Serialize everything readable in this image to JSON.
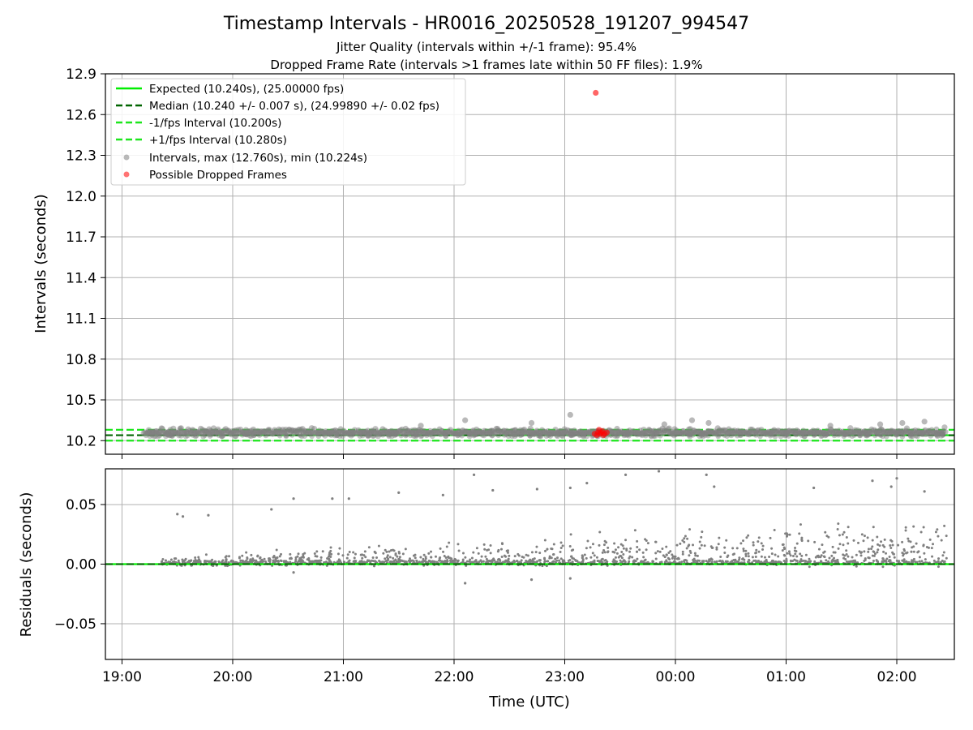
{
  "title": "Timestamp Intervals - HR0016_20250528_191207_994547",
  "subtitle_lines": [
    "Jitter Quality (intervals within +/-1 frame): 95.4%",
    "Dropped Frame Rate (intervals >1 frames late within 50 FF files): 1.9%"
  ],
  "colors": {
    "expected": "#00ee00",
    "median": "#006400",
    "fps_band": "#1de61d",
    "intervals": "#808080",
    "dropped": "#ff0000",
    "grid": "#b0b0b0"
  },
  "chart_data": [
    {
      "type": "scatter",
      "ylabel": "Intervals (seconds)",
      "ylim": [
        10.1,
        12.9
      ],
      "y_ticks": [
        "10.2",
        "10.5",
        "10.8",
        "11.1",
        "11.4",
        "11.7",
        "12.0",
        "12.3",
        "12.6",
        "12.9"
      ],
      "grid": true,
      "legend_position": "top-left",
      "reference_lines": [
        {
          "name": "Expected (10.240s), (25.00000 fps)",
          "value": 10.24,
          "style": "solid",
          "color": "#00ee00"
        },
        {
          "name": "Median (10.240 +/- 0.007 s), (24.99890 +/- 0.02 fps)",
          "value": 10.24,
          "style": "dashed",
          "color": "#006400"
        },
        {
          "name": "-1/fps Interval (10.200s)",
          "value": 10.2,
          "style": "dashed",
          "color": "#1de61d"
        },
        {
          "name": "+1/fps Interval (10.280s)",
          "value": 10.28,
          "style": "dashed",
          "color": "#1de61d"
        }
      ],
      "series": [
        {
          "name": "Intervals, max (12.760s), min (10.224s)",
          "max": 12.76,
          "min": 10.224,
          "typical": 10.24,
          "color": "#808080"
        },
        {
          "name": "Possible Dropped Frames",
          "color": "#ff0000",
          "points": [
            [
              23.28,
              12.76
            ],
            [
              23.27,
              10.25
            ],
            [
              23.3,
              10.26
            ],
            [
              23.32,
              10.25
            ],
            [
              23.34,
              10.27
            ],
            [
              23.36,
              10.25
            ],
            [
              23.38,
              10.26
            ],
            [
              23.31,
              10.28
            ],
            [
              23.29,
              10.24
            ],
            [
              23.35,
              10.24
            ],
            [
              23.33,
              10.26
            ]
          ]
        }
      ],
      "notable_points": [
        [
          22.1,
          10.35
        ],
        [
          23.05,
          10.39
        ],
        [
          21.7,
          10.31
        ],
        [
          22.7,
          10.33
        ],
        [
          0.15,
          10.35
        ],
        [
          1.4,
          10.31
        ],
        [
          2.05,
          10.33
        ],
        [
          2.25,
          10.34
        ],
        [
          1.85,
          10.32
        ],
        [
          23.9,
          10.32
        ],
        [
          0.3,
          10.33
        ]
      ]
    },
    {
      "type": "scatter",
      "xlabel": "Time (UTC)",
      "ylabel": "Residuals (seconds)",
      "ylim": [
        -0.08,
        0.08
      ],
      "y_ticks": [
        "−0.05",
        "0.00",
        "0.05"
      ],
      "x_range_hours": [
        18.85,
        2.52
      ],
      "x_ticks": [
        "19:00",
        "20:00",
        "21:00",
        "22:00",
        "23:00",
        "00:00",
        "01:00",
        "02:00"
      ],
      "grid": true,
      "series_color": "#808080",
      "notable_points": [
        [
          19.5,
          0.042
        ],
        [
          19.55,
          0.04
        ],
        [
          19.78,
          0.041
        ],
        [
          20.35,
          0.046
        ],
        [
          20.55,
          0.055
        ],
        [
          20.9,
          0.055
        ],
        [
          21.05,
          0.055
        ],
        [
          21.5,
          0.06
        ],
        [
          21.9,
          0.058
        ],
        [
          22.18,
          0.075
        ],
        [
          22.35,
          0.062
        ],
        [
          22.75,
          0.063
        ],
        [
          23.05,
          0.064
        ],
        [
          23.2,
          0.068
        ],
        [
          23.55,
          0.075
        ],
        [
          23.85,
          0.078
        ],
        [
          0.28,
          0.075
        ],
        [
          0.35,
          0.065
        ],
        [
          1.25,
          0.064
        ],
        [
          1.78,
          0.07
        ],
        [
          2.0,
          0.072
        ],
        [
          1.95,
          0.065
        ],
        [
          2.25,
          0.061
        ],
        [
          22.1,
          -0.016
        ],
        [
          22.7,
          -0.013
        ],
        [
          23.05,
          -0.012
        ],
        [
          20.55,
          -0.007
        ]
      ]
    }
  ]
}
